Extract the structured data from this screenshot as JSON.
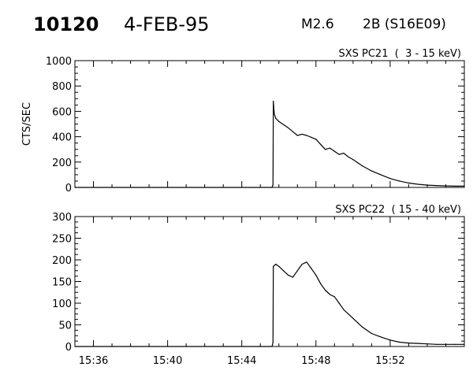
{
  "header": {
    "event_id": "10120",
    "date": "4-FEB-95",
    "goes_class": "M2.6",
    "optical_class_region": "2B (S16E09)"
  },
  "chart_data": [
    {
      "type": "line",
      "title": "SXS PC21  (  3 - 15 keV)",
      "ylabel": "CTS/SEC",
      "xlabel": "",
      "xlim": [
        "15:35:00",
        "15:56:00"
      ],
      "ylim": [
        0,
        1000
      ],
      "yticks": [
        0,
        200,
        400,
        600,
        800,
        1000
      ],
      "x_tick_labels": [],
      "grid": false,
      "series": [
        {
          "x": [
            "15:35:00",
            "15:45:38",
            "15:45:41",
            "15:45:42",
            "15:45:45",
            "15:45:50",
            "15:46:00",
            "15:46:15",
            "15:46:30",
            "15:46:45",
            "15:47:00",
            "15:47:15",
            "15:47:30",
            "15:47:45",
            "15:48:00",
            "15:48:15",
            "15:48:30",
            "15:48:45",
            "15:49:00",
            "15:49:15",
            "15:49:30",
            "15:49:45",
            "15:50:00",
            "15:50:15",
            "15:50:30",
            "15:51:00",
            "15:51:30",
            "15:52:00",
            "15:52:30",
            "15:53:00",
            "15:53:30",
            "15:54:00",
            "15:54:30",
            "15:55:00",
            "15:55:30",
            "15:56:00"
          ],
          "values": [
            0,
            0,
            20,
            680,
            580,
            545,
            520,
            495,
            470,
            440,
            410,
            420,
            410,
            395,
            380,
            340,
            300,
            310,
            285,
            260,
            270,
            240,
            220,
            195,
            170,
            130,
            100,
            70,
            50,
            35,
            25,
            18,
            15,
            12,
            10,
            10
          ]
        }
      ]
    },
    {
      "type": "line",
      "title": "SXS PC22  ( 15 - 40 keV)",
      "ylabel": "",
      "xlabel": "",
      "xlim": [
        "15:35:00",
        "15:56:00"
      ],
      "ylim": [
        0,
        300
      ],
      "yticks": [
        0,
        50,
        100,
        150,
        200,
        250,
        300
      ],
      "x_tick_labels": [
        "15:36",
        "15:40",
        "15:44",
        "15:48",
        "15:52"
      ],
      "grid": false,
      "series": [
        {
          "x": [
            "15:35:00",
            "15:45:38",
            "15:45:41",
            "15:45:42",
            "15:45:50",
            "15:46:00",
            "15:46:15",
            "15:46:30",
            "15:46:45",
            "15:47:00",
            "15:47:15",
            "15:47:30",
            "15:47:45",
            "15:48:00",
            "15:48:15",
            "15:48:30",
            "15:48:45",
            "15:49:00",
            "15:49:15",
            "15:49:30",
            "15:49:45",
            "15:50:00",
            "15:50:15",
            "15:50:30",
            "15:51:00",
            "15:51:30",
            "15:52:00",
            "15:52:30",
            "15:53:00",
            "15:53:30",
            "15:54:00",
            "15:54:30",
            "15:55:00",
            "15:55:30",
            "15:56:00"
          ],
          "values": [
            0,
            0,
            10,
            185,
            190,
            185,
            175,
            165,
            160,
            175,
            190,
            195,
            180,
            165,
            145,
            130,
            120,
            115,
            100,
            85,
            75,
            65,
            55,
            45,
            30,
            22,
            15,
            10,
            8,
            7,
            6,
            5,
            5,
            5,
            5
          ]
        }
      ]
    }
  ]
}
